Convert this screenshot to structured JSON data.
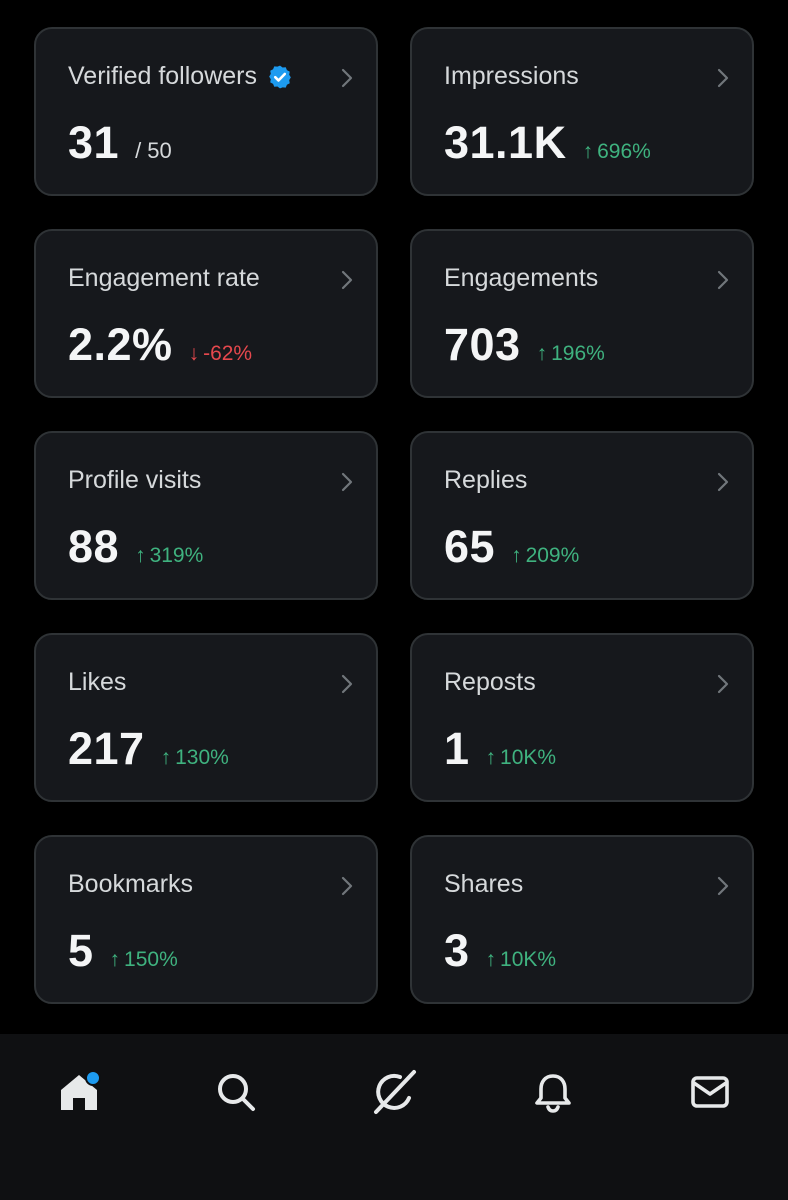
{
  "colors": {
    "background": "#000000",
    "card_background": "#16181c",
    "card_border": "#2f3336",
    "positive": "#3fb27f",
    "negative": "#e5484d",
    "verified_blue": "#1d9bf0",
    "notification_dot": "#1d9bf0"
  },
  "cards": [
    {
      "title": "Verified followers",
      "value": "31",
      "sub": "/ 50",
      "icon": "verified-badge-icon"
    },
    {
      "title": "Impressions",
      "value": "31.1K",
      "delta": "696%",
      "direction": "up"
    },
    {
      "title": "Engagement rate",
      "value": "2.2%",
      "delta": "-62%",
      "direction": "down"
    },
    {
      "title": "Engagements",
      "value": "703",
      "delta": "196%",
      "direction": "up"
    },
    {
      "title": "Profile visits",
      "value": "88",
      "delta": "319%",
      "direction": "up"
    },
    {
      "title": "Replies",
      "value": "65",
      "delta": "209%",
      "direction": "up"
    },
    {
      "title": "Likes",
      "value": "217",
      "delta": "130%",
      "direction": "up"
    },
    {
      "title": "Reposts",
      "value": "1",
      "delta": "10K%",
      "direction": "up"
    },
    {
      "title": "Bookmarks",
      "value": "5",
      "delta": "150%",
      "direction": "up"
    },
    {
      "title": "Shares",
      "value": "3",
      "delta": "10K%",
      "direction": "up"
    }
  ],
  "arrows": {
    "up": "↑",
    "down": "↓"
  },
  "tabbar": {
    "items": [
      {
        "icon": "home-icon",
        "active": true,
        "has_dot": true
      },
      {
        "icon": "search-icon"
      },
      {
        "icon": "grok-icon"
      },
      {
        "icon": "bell-icon"
      },
      {
        "icon": "mail-icon"
      }
    ]
  }
}
